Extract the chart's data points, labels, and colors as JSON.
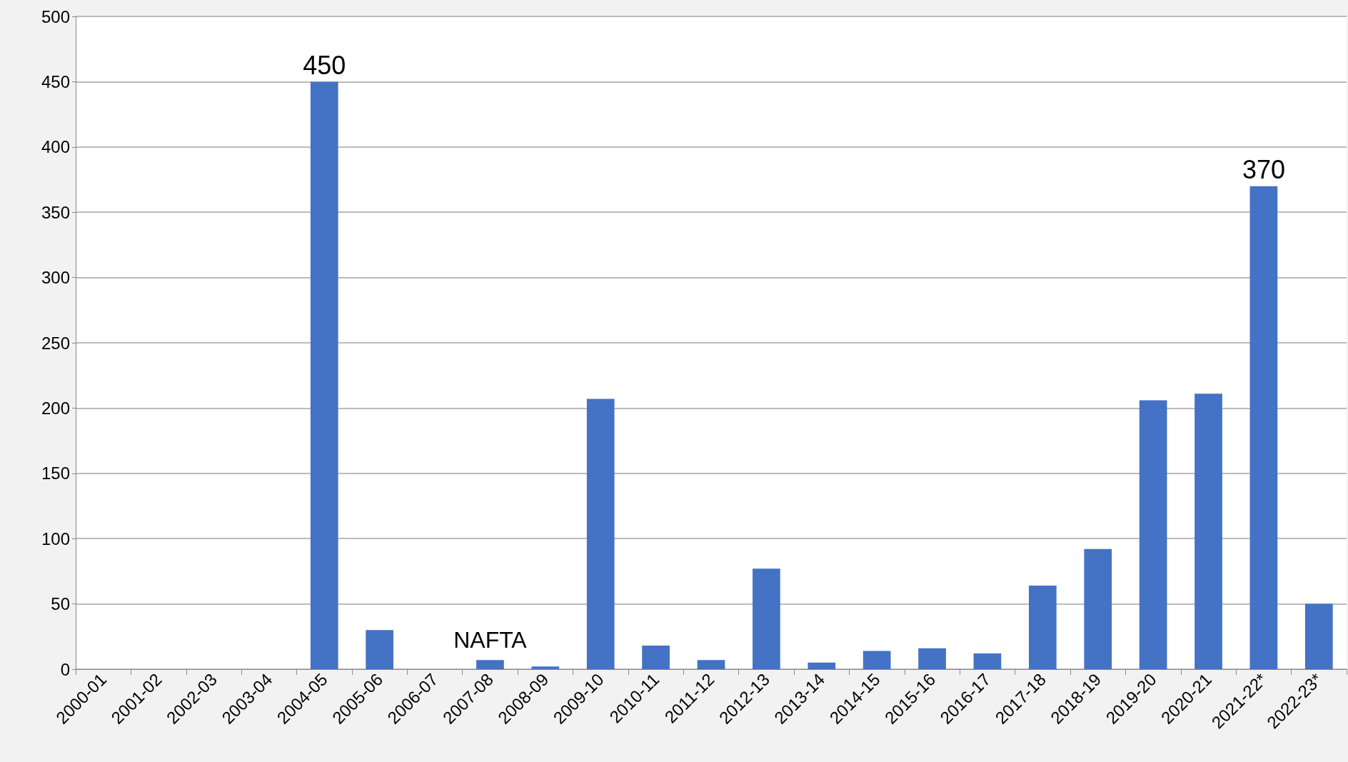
{
  "chart_data": {
    "type": "bar",
    "categories": [
      "2000-01",
      "2001-02",
      "2002-03",
      "2003-04",
      "2004-05",
      "2005-06",
      "2006-07",
      "2007-08",
      "2008-09",
      "2009-10",
      "2010-11",
      "2011-12",
      "2012-13",
      "2013-14",
      "2014-15",
      "2015-16",
      "2016-17",
      "2017-18",
      "2018-19",
      "2019-20",
      "2020-21",
      "2021-22*",
      "2022-23*"
    ],
    "values": [
      0,
      0,
      0,
      0,
      450,
      30,
      0,
      7,
      2,
      207,
      18,
      7,
      77,
      5,
      14,
      16,
      12,
      64,
      92,
      206,
      211,
      370,
      50
    ],
    "value_labels": [
      null,
      null,
      null,
      null,
      "450",
      null,
      null,
      null,
      null,
      null,
      null,
      null,
      null,
      null,
      null,
      null,
      null,
      null,
      null,
      null,
      null,
      "370",
      null
    ],
    "color": "#4472c4",
    "ylim": [
      0,
      500
    ],
    "yticks": [
      0,
      50,
      100,
      150,
      200,
      250,
      300,
      350,
      400,
      450,
      500
    ],
    "grid": "y",
    "annotations": [
      {
        "text": "NAFTA",
        "x": "2007-08",
        "y": 7
      }
    ]
  }
}
